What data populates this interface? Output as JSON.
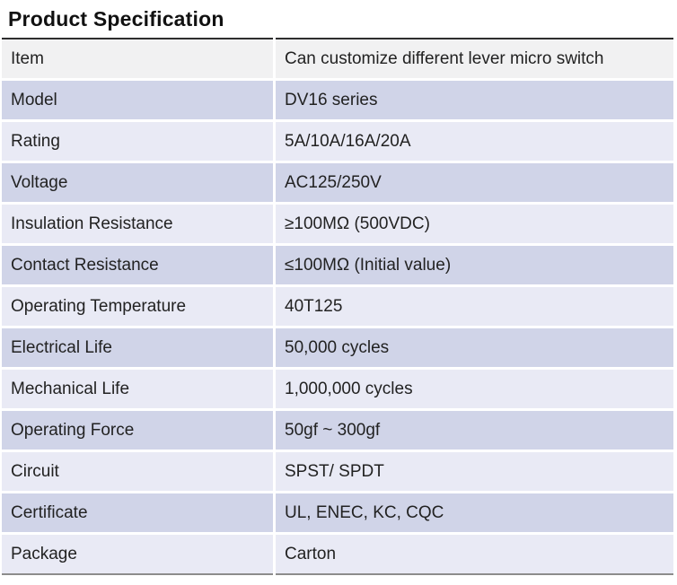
{
  "page": {
    "title": "Product Specification"
  },
  "table": {
    "rows": [
      {
        "label": "Item",
        "value": "Can customize different lever micro switch",
        "variant": "gray"
      },
      {
        "label": "Model",
        "value": "DV16 series",
        "variant": "dark"
      },
      {
        "label": "Rating",
        "value": "5A/10A/16A/20A",
        "variant": "light"
      },
      {
        "label": "Voltage",
        "value": "AC125/250V",
        "variant": "dark"
      },
      {
        "label": "Insulation Resistance",
        "value": "≥100MΩ (500VDC)",
        "variant": "light"
      },
      {
        "label": "Contact Resistance",
        "value": "≤100MΩ (Initial value)",
        "variant": "dark"
      },
      {
        "label": "Operating Temperature",
        "value": "40T125",
        "variant": "light"
      },
      {
        "label": "Electrical Life",
        "value": "50,000 cycles",
        "variant": "dark"
      },
      {
        "label": "Mechanical Life",
        "value": "1,000,000 cycles",
        "variant": "light"
      },
      {
        "label": "Operating Force",
        "value": "50gf ~ 300gf",
        "variant": "dark"
      },
      {
        "label": "Circuit",
        "value": "SPST/ SPDT",
        "variant": "light"
      },
      {
        "label": "Certificate",
        "value": "UL, ENEC, KC, CQC",
        "variant": "dark"
      },
      {
        "label": "Package",
        "value": "Carton",
        "variant": "light"
      }
    ]
  },
  "colors": {
    "row_gray": "#f1f1f2",
    "row_dark": "#d0d4e8",
    "row_light": "#e9eaf5",
    "top_border": "#2e2e2e",
    "bottom_border": "#8c8c8c",
    "text": "#222222"
  }
}
